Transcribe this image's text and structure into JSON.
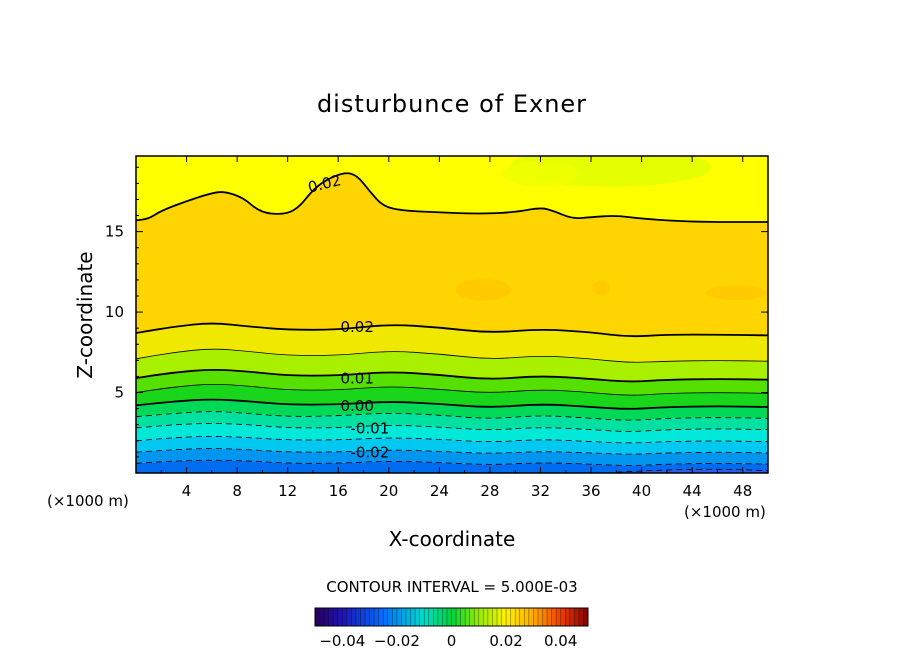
{
  "chart_data": {
    "type": "contour",
    "title": "disturbunce of Exner",
    "xlabel": "X-coordinate",
    "ylabel": "Z-coordinate",
    "x_unit": "(×1000 m)",
    "y_unit": "(×1000 m)",
    "xlim": [
      0,
      50
    ],
    "ylim": [
      0,
      19.7
    ],
    "x_ticks": [
      4,
      8,
      12,
      16,
      20,
      24,
      28,
      32,
      36,
      40,
      44,
      48
    ],
    "y_ticks": [
      5,
      10,
      15
    ],
    "contour_interval_text": "CONTOUR INTERVAL = 5.000E-03",
    "colorbar": {
      "range": [
        -0.05,
        0.05
      ],
      "tick_labels": [
        "-0.04",
        "-0.02",
        "0",
        "0.02",
        "0.04"
      ],
      "tick_values": [
        -0.04,
        -0.02,
        0,
        0.02,
        0.04
      ]
    },
    "contour_labels": [
      {
        "text": "0.02",
        "x": 14.9,
        "z": 18.0
      },
      {
        "text": "0.02",
        "x": 17.5,
        "z": 9.1
      },
      {
        "text": "0.01",
        "x": 17.5,
        "z": 5.9
      },
      {
        "text": "0.00",
        "x": 17.5,
        "z": 4.2
      },
      {
        "text": "-0.01",
        "x": 18.5,
        "z": 2.8
      },
      {
        "text": "-0.02",
        "x": 18.5,
        "z": 1.3
      }
    ],
    "contours": [
      {
        "level": 0.02,
        "style": "bold",
        "points": [
          [
            0,
            15.7
          ],
          [
            1,
            15.8
          ],
          [
            2,
            16.3
          ],
          [
            4,
            16.9
          ],
          [
            6,
            17.4
          ],
          [
            7,
            17.5
          ],
          [
            8.5,
            17.1
          ],
          [
            9.5,
            16.4
          ],
          [
            10.5,
            16.1
          ],
          [
            12,
            16.1
          ],
          [
            13,
            16.6
          ],
          [
            14,
            17.6
          ],
          [
            15,
            18.2
          ],
          [
            16.5,
            18.7
          ],
          [
            17.5,
            18.5
          ],
          [
            18.5,
            17.5
          ],
          [
            19.5,
            16.6
          ],
          [
            21,
            16.3
          ],
          [
            24,
            16.2
          ],
          [
            27,
            16.1
          ],
          [
            30,
            16.2
          ],
          [
            32,
            16.5
          ],
          [
            33,
            16.3
          ],
          [
            34.5,
            15.8
          ],
          [
            36,
            15.9
          ],
          [
            38,
            16.0
          ],
          [
            40,
            15.8
          ],
          [
            44,
            15.6
          ],
          [
            48,
            15.6
          ],
          [
            50,
            15.6
          ]
        ]
      },
      {
        "level": 0.02,
        "style": "bold",
        "points": [
          [
            0,
            8.7
          ],
          [
            3,
            9.1
          ],
          [
            6,
            9.35
          ],
          [
            9,
            9.1
          ],
          [
            12,
            8.9
          ],
          [
            16,
            8.9
          ],
          [
            20,
            9.25
          ],
          [
            24,
            9.05
          ],
          [
            28,
            8.7
          ],
          [
            32,
            8.95
          ],
          [
            36,
            8.75
          ],
          [
            39,
            8.45
          ],
          [
            42,
            8.6
          ],
          [
            46,
            8.6
          ],
          [
            50,
            8.55
          ]
        ]
      },
      {
        "level": 0.015,
        "style": "thin",
        "points": [
          [
            0,
            7.1
          ],
          [
            3,
            7.5
          ],
          [
            6,
            7.75
          ],
          [
            9,
            7.55
          ],
          [
            12,
            7.3
          ],
          [
            16,
            7.3
          ],
          [
            20,
            7.6
          ],
          [
            24,
            7.4
          ],
          [
            28,
            7.05
          ],
          [
            32,
            7.3
          ],
          [
            36,
            7.1
          ],
          [
            39,
            6.85
          ],
          [
            42,
            6.95
          ],
          [
            46,
            7.0
          ],
          [
            50,
            6.95
          ]
        ]
      },
      {
        "level": 0.01,
        "style": "bold",
        "points": [
          [
            0,
            5.9
          ],
          [
            3,
            6.25
          ],
          [
            6,
            6.45
          ],
          [
            9,
            6.3
          ],
          [
            12,
            6.05
          ],
          [
            16,
            6.05
          ],
          [
            20,
            6.3
          ],
          [
            24,
            6.1
          ],
          [
            28,
            5.8
          ],
          [
            32,
            6.05
          ],
          [
            36,
            5.85
          ],
          [
            39,
            5.65
          ],
          [
            42,
            5.8
          ],
          [
            46,
            5.85
          ],
          [
            50,
            5.8
          ]
        ]
      },
      {
        "level": 0.005,
        "style": "thin",
        "points": [
          [
            0,
            5.0
          ],
          [
            3,
            5.35
          ],
          [
            6,
            5.55
          ],
          [
            9,
            5.4
          ],
          [
            12,
            5.15
          ],
          [
            16,
            5.15
          ],
          [
            20,
            5.4
          ],
          [
            24,
            5.2
          ],
          [
            28,
            4.95
          ],
          [
            32,
            5.2
          ],
          [
            36,
            5.0
          ],
          [
            39,
            4.8
          ],
          [
            42,
            4.95
          ],
          [
            46,
            5.0
          ],
          [
            50,
            4.95
          ]
        ]
      },
      {
        "level": 0.0,
        "style": "bold",
        "points": [
          [
            0,
            4.2
          ],
          [
            3,
            4.45
          ],
          [
            6,
            4.6
          ],
          [
            9,
            4.45
          ],
          [
            12,
            4.25
          ],
          [
            16,
            4.25
          ],
          [
            20,
            4.45
          ],
          [
            24,
            4.3
          ],
          [
            28,
            4.05
          ],
          [
            32,
            4.3
          ],
          [
            36,
            4.1
          ],
          [
            39,
            3.95
          ],
          [
            42,
            4.1
          ],
          [
            46,
            4.15
          ],
          [
            50,
            4.1
          ]
        ]
      },
      {
        "level": -0.005,
        "style": "dashed",
        "points": [
          [
            0,
            3.5
          ],
          [
            3,
            3.7
          ],
          [
            6,
            3.85
          ],
          [
            9,
            3.7
          ],
          [
            12,
            3.5
          ],
          [
            16,
            3.55
          ],
          [
            20,
            3.75
          ],
          [
            24,
            3.6
          ],
          [
            28,
            3.35
          ],
          [
            32,
            3.6
          ],
          [
            36,
            3.4
          ],
          [
            39,
            3.25
          ],
          [
            42,
            3.4
          ],
          [
            46,
            3.45
          ],
          [
            50,
            3.4
          ]
        ]
      },
      {
        "level": -0.01,
        "style": "dashed",
        "points": [
          [
            0,
            2.8
          ],
          [
            3,
            3.0
          ],
          [
            6,
            3.1
          ],
          [
            9,
            3.0
          ],
          [
            12,
            2.8
          ],
          [
            16,
            2.8
          ],
          [
            20,
            3.0
          ],
          [
            24,
            2.85
          ],
          [
            28,
            2.65
          ],
          [
            32,
            2.85
          ],
          [
            36,
            2.7
          ],
          [
            39,
            2.55
          ],
          [
            42,
            2.7
          ],
          [
            46,
            2.75
          ],
          [
            50,
            2.7
          ]
        ]
      },
      {
        "level": -0.015,
        "style": "dashed",
        "points": [
          [
            0,
            2.0
          ],
          [
            3,
            2.2
          ],
          [
            6,
            2.3
          ],
          [
            9,
            2.2
          ],
          [
            12,
            2.05
          ],
          [
            16,
            2.05
          ],
          [
            20,
            2.2
          ],
          [
            24,
            2.1
          ],
          [
            28,
            1.9
          ],
          [
            32,
            2.1
          ],
          [
            36,
            1.95
          ],
          [
            39,
            1.85
          ],
          [
            42,
            1.95
          ],
          [
            46,
            2.0
          ],
          [
            50,
            1.95
          ]
        ]
      },
      {
        "level": -0.02,
        "style": "dashed",
        "points": [
          [
            0,
            1.3
          ],
          [
            3,
            1.45
          ],
          [
            6,
            1.55
          ],
          [
            9,
            1.45
          ],
          [
            12,
            1.3
          ],
          [
            16,
            1.3
          ],
          [
            20,
            1.45
          ],
          [
            24,
            1.35
          ],
          [
            28,
            1.2
          ],
          [
            32,
            1.35
          ],
          [
            36,
            1.25
          ],
          [
            39,
            1.15
          ],
          [
            42,
            1.25
          ],
          [
            46,
            1.3
          ],
          [
            50,
            1.25
          ]
        ]
      },
      {
        "level": -0.025,
        "style": "dashed",
        "points": [
          [
            0,
            0.6
          ],
          [
            3,
            0.75
          ],
          [
            6,
            0.8
          ],
          [
            9,
            0.75
          ],
          [
            12,
            0.6
          ],
          [
            16,
            0.6
          ],
          [
            20,
            0.75
          ],
          [
            24,
            0.65
          ],
          [
            28,
            0.5
          ],
          [
            32,
            0.65
          ],
          [
            36,
            0.55
          ],
          [
            39,
            0.45
          ],
          [
            42,
            0.55
          ],
          [
            46,
            0.6
          ],
          [
            50,
            0.55
          ]
        ]
      },
      {
        "level": -0.03,
        "style": "dashed",
        "points": [
          [
            38,
            0.05
          ],
          [
            42,
            0.2
          ],
          [
            46,
            0.25
          ],
          [
            50,
            0.15
          ]
        ]
      }
    ],
    "filled_bands": [
      {
        "between": [
          0.02,
          "top"
        ],
        "color": "#ffff00"
      },
      {
        "between": [
          0.02,
          0.02
        ],
        "color": "#ffd500"
      },
      {
        "between": [
          0.015,
          0.02
        ],
        "color": "#f0e800"
      },
      {
        "between": [
          0.01,
          0.015
        ],
        "color": "#a8f000"
      },
      {
        "between": [
          0.005,
          0.01
        ],
        "color": "#55e000"
      },
      {
        "between": [
          0.0,
          0.005
        ],
        "color": "#1ad61a"
      },
      {
        "between": [
          -0.005,
          0.0
        ],
        "color": "#00d858"
      },
      {
        "between": [
          -0.01,
          -0.005
        ],
        "color": "#00e0a0"
      },
      {
        "between": [
          -0.015,
          -0.01
        ],
        "color": "#00e8d8"
      },
      {
        "between": [
          -0.02,
          -0.015
        ],
        "color": "#00c8f0"
      },
      {
        "between": [
          -0.025,
          -0.02
        ],
        "color": "#0096f0"
      },
      {
        "between": [
          "bottom",
          -0.025
        ],
        "color": "#006cf0"
      }
    ],
    "blobs": [
      {
        "x": 27.5,
        "z": 11.4,
        "rx": 2.2,
        "rz": 0.7,
        "color": "#ffc800"
      },
      {
        "x": 36.8,
        "z": 11.5,
        "rx": 0.7,
        "rz": 0.45,
        "color": "#ffc800"
      },
      {
        "x": 47.5,
        "z": 11.2,
        "rx": 2.4,
        "rz": 0.45,
        "color": "#ffc800"
      },
      {
        "x": 37.5,
        "z": 19.0,
        "rx": 8.0,
        "rz": 1.2,
        "color": "#e0ff00"
      },
      {
        "x": 32.0,
        "z": 18.6,
        "rx": 3.0,
        "rz": 0.8,
        "color": "#f0ff00"
      }
    ]
  }
}
